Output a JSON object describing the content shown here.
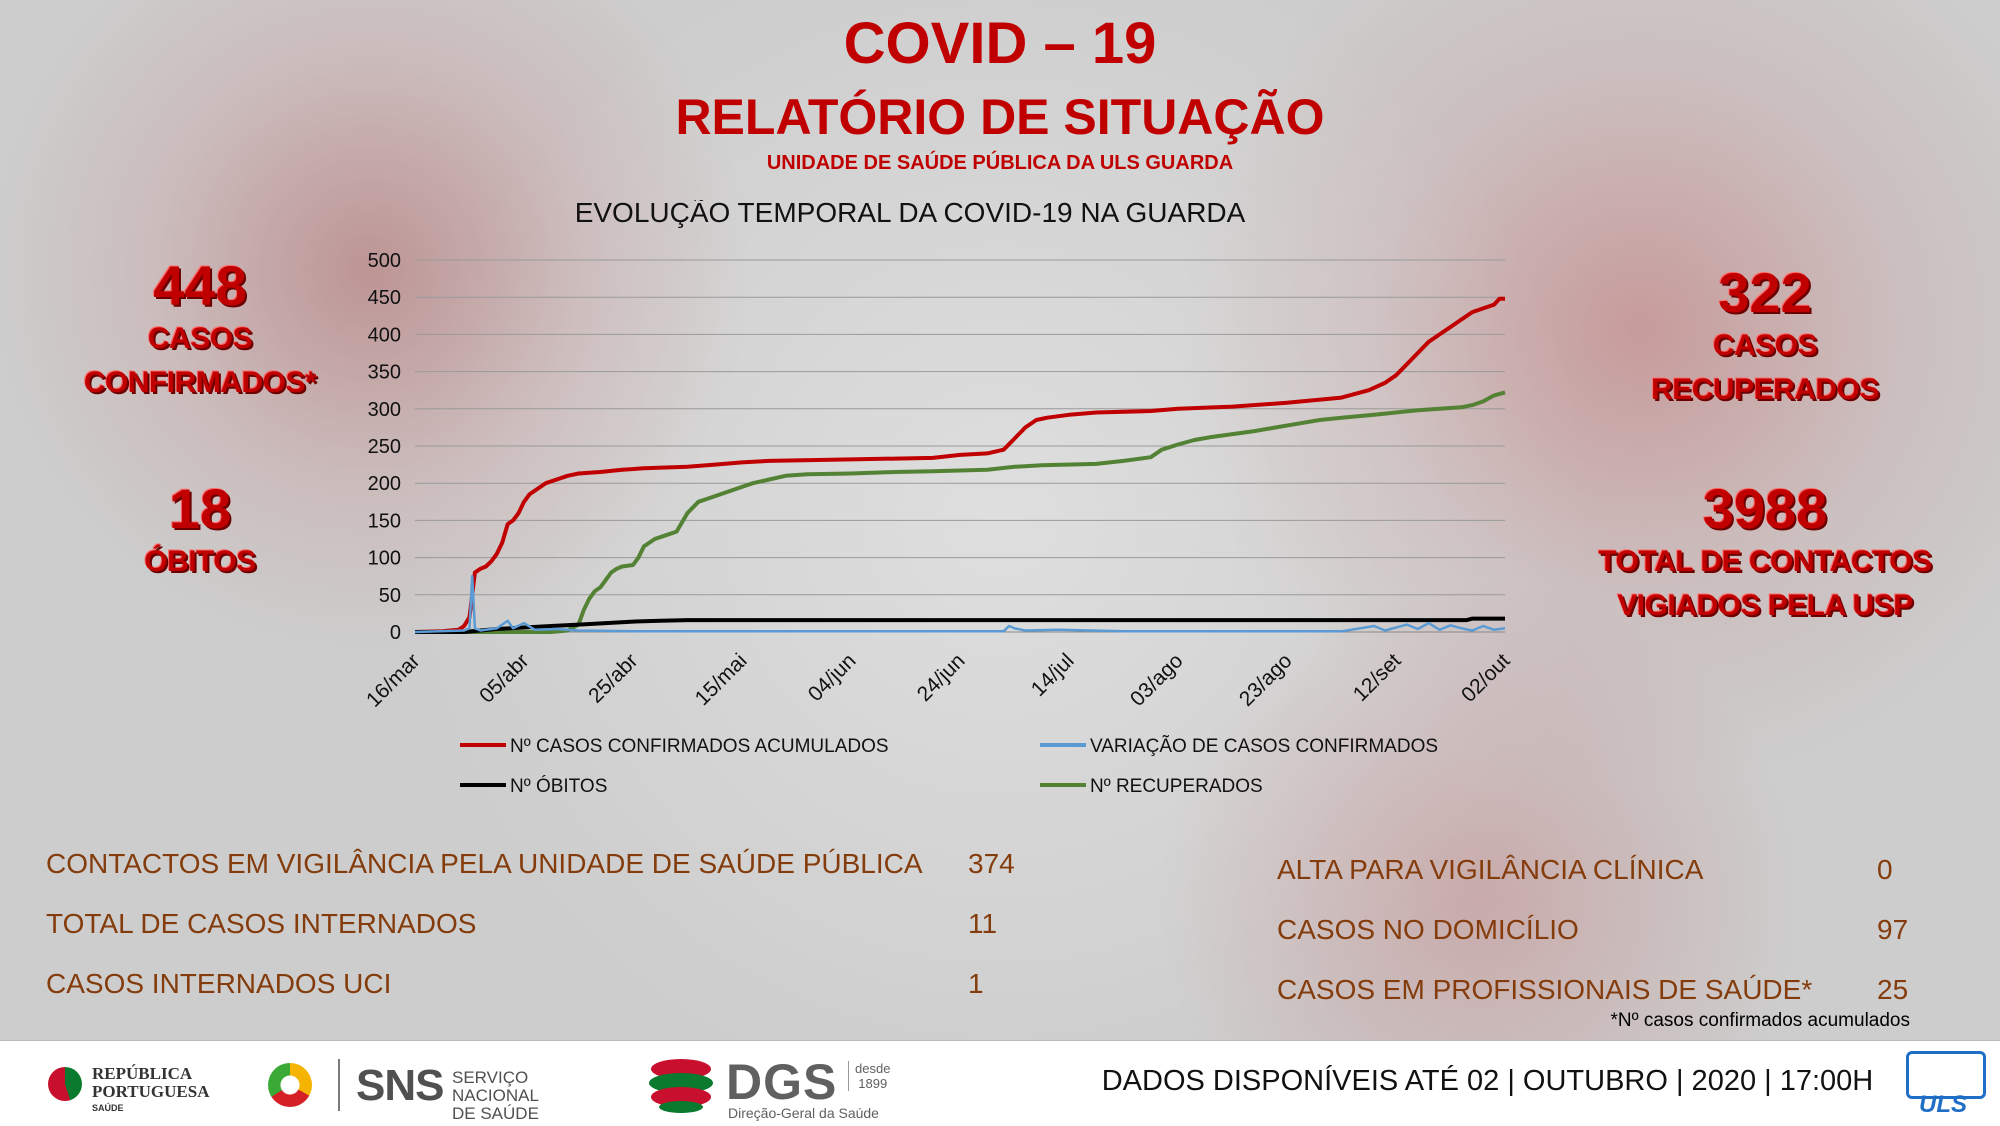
{
  "header": {
    "title": "COVID – 19",
    "subtitle": "RELATÓRIO DE SITUAÇÃO",
    "unit": "UNIDADE DE SAÚDE PÚBLICA DA ULS GUARDA"
  },
  "stats_left": {
    "confirmed_value": "448",
    "confirmed_label_1": "CASOS",
    "confirmed_label_2": "CONFIRMADOS*",
    "deaths_value": "18",
    "deaths_label": "ÓBITOS"
  },
  "stats_right": {
    "recovered_value": "322",
    "recovered_label_1": "CASOS",
    "recovered_label_2": "RECUPERADOS",
    "contacts_value": "3988",
    "contacts_label_1": "TOTAL DE CONTACTOS",
    "contacts_label_2": "VIGIADOS PELA USP"
  },
  "chart_data": {
    "type": "line",
    "title": "EVOLUÇÃO TEMPORAL DA COVID-19 NA GUARDA",
    "ylim": [
      0,
      500
    ],
    "y_ticks": [
      "0",
      "50",
      "100",
      "150",
      "200",
      "250",
      "300",
      "350",
      "400",
      "450",
      "500"
    ],
    "x_range_days": [
      0,
      200
    ],
    "x_ticks": [
      {
        "label": "16/mar",
        "day": 0
      },
      {
        "label": "05/abr",
        "day": 20
      },
      {
        "label": "25/abr",
        "day": 40
      },
      {
        "label": "15/mai",
        "day": 60
      },
      {
        "label": "04/jun",
        "day": 80
      },
      {
        "label": "24/jun",
        "day": 100
      },
      {
        "label": "14/jul",
        "day": 120
      },
      {
        "label": "03/ago",
        "day": 140
      },
      {
        "label": "23/ago",
        "day": 160
      },
      {
        "label": "12/set",
        "day": 180
      },
      {
        "label": "02/out",
        "day": 200
      }
    ],
    "grid": "horizontal",
    "legend_position": "bottom",
    "series": [
      {
        "name": "Nº CASOS CONFIRMADOS ACUMULADOS",
        "color": "#c00000",
        "points": [
          [
            0,
            0
          ],
          [
            5,
            1
          ],
          [
            8,
            3
          ],
          [
            9,
            8
          ],
          [
            10,
            20
          ],
          [
            11,
            80
          ],
          [
            12,
            85
          ],
          [
            13,
            88
          ],
          [
            14,
            95
          ],
          [
            15,
            105
          ],
          [
            16,
            120
          ],
          [
            17,
            145
          ],
          [
            18,
            150
          ],
          [
            19,
            160
          ],
          [
            20,
            175
          ],
          [
            21,
            185
          ],
          [
            22,
            190
          ],
          [
            23,
            195
          ],
          [
            24,
            200
          ],
          [
            26,
            205
          ],
          [
            28,
            210
          ],
          [
            30,
            213
          ],
          [
            34,
            215
          ],
          [
            38,
            218
          ],
          [
            42,
            220
          ],
          [
            50,
            222
          ],
          [
            55,
            225
          ],
          [
            60,
            228
          ],
          [
            65,
            230
          ],
          [
            80,
            232
          ],
          [
            95,
            234
          ],
          [
            100,
            238
          ],
          [
            105,
            240
          ],
          [
            108,
            245
          ],
          [
            110,
            260
          ],
          [
            112,
            275
          ],
          [
            114,
            285
          ],
          [
            116,
            288
          ],
          [
            120,
            292
          ],
          [
            125,
            295
          ],
          [
            135,
            297
          ],
          [
            140,
            300
          ],
          [
            150,
            303
          ],
          [
            160,
            308
          ],
          [
            170,
            315
          ],
          [
            175,
            325
          ],
          [
            178,
            335
          ],
          [
            180,
            345
          ],
          [
            182,
            360
          ],
          [
            184,
            375
          ],
          [
            186,
            390
          ],
          [
            188,
            400
          ],
          [
            190,
            410
          ],
          [
            192,
            420
          ],
          [
            194,
            430
          ],
          [
            196,
            435
          ],
          [
            198,
            440
          ],
          [
            199,
            448
          ],
          [
            200,
            448
          ]
        ]
      },
      {
        "name": "VARIAÇÃO DE CASOS CONFIRMADOS",
        "color": "#5b9bd5",
        "points": [
          [
            0,
            0
          ],
          [
            9,
            2
          ],
          [
            10,
            5
          ],
          [
            10.5,
            75
          ],
          [
            11,
            5
          ],
          [
            12,
            2
          ],
          [
            15,
            5
          ],
          [
            16,
            10
          ],
          [
            17,
            15
          ],
          [
            18,
            5
          ],
          [
            20,
            12
          ],
          [
            22,
            3
          ],
          [
            26,
            4
          ],
          [
            30,
            2
          ],
          [
            40,
            1
          ],
          [
            60,
            1
          ],
          [
            90,
            1
          ],
          [
            108,
            1
          ],
          [
            109,
            8
          ],
          [
            110,
            5
          ],
          [
            112,
            2
          ],
          [
            118,
            3
          ],
          [
            130,
            1
          ],
          [
            150,
            1
          ],
          [
            170,
            1
          ],
          [
            176,
            8
          ],
          [
            178,
            2
          ],
          [
            180,
            6
          ],
          [
            182,
            10
          ],
          [
            184,
            4
          ],
          [
            186,
            12
          ],
          [
            188,
            3
          ],
          [
            190,
            9
          ],
          [
            192,
            5
          ],
          [
            194,
            2
          ],
          [
            196,
            8
          ],
          [
            198,
            3
          ],
          [
            200,
            5
          ]
        ]
      },
      {
        "name": "Nº ÓBITOS",
        "color": "#000000",
        "points": [
          [
            0,
            0
          ],
          [
            9,
            0
          ],
          [
            12,
            2
          ],
          [
            15,
            4
          ],
          [
            20,
            6
          ],
          [
            25,
            8
          ],
          [
            30,
            10
          ],
          [
            35,
            12
          ],
          [
            40,
            14
          ],
          [
            45,
            15
          ],
          [
            50,
            16
          ],
          [
            150,
            16
          ],
          [
            193,
            16
          ],
          [
            194,
            18
          ],
          [
            200,
            18
          ]
        ]
      },
      {
        "name": "Nº RECUPERADOS",
        "color": "#548235",
        "points": [
          [
            0,
            0
          ],
          [
            25,
            0
          ],
          [
            28,
            2
          ],
          [
            30,
            10
          ],
          [
            31,
            30
          ],
          [
            32,
            45
          ],
          [
            33,
            55
          ],
          [
            34,
            60
          ],
          [
            35,
            70
          ],
          [
            36,
            80
          ],
          [
            37,
            85
          ],
          [
            38,
            88
          ],
          [
            40,
            90
          ],
          [
            41,
            100
          ],
          [
            42,
            115
          ],
          [
            44,
            125
          ],
          [
            46,
            130
          ],
          [
            48,
            135
          ],
          [
            50,
            160
          ],
          [
            52,
            175
          ],
          [
            54,
            180
          ],
          [
            56,
            185
          ],
          [
            58,
            190
          ],
          [
            60,
            195
          ],
          [
            62,
            200
          ],
          [
            65,
            205
          ],
          [
            68,
            210
          ],
          [
            72,
            212
          ],
          [
            80,
            213
          ],
          [
            88,
            215
          ],
          [
            95,
            216
          ],
          [
            105,
            218
          ],
          [
            110,
            222
          ],
          [
            115,
            224
          ],
          [
            125,
            226
          ],
          [
            130,
            230
          ],
          [
            135,
            235
          ],
          [
            137,
            245
          ],
          [
            140,
            252
          ],
          [
            143,
            258
          ],
          [
            146,
            262
          ],
          [
            150,
            266
          ],
          [
            154,
            270
          ],
          [
            158,
            275
          ],
          [
            162,
            280
          ],
          [
            166,
            285
          ],
          [
            170,
            288
          ],
          [
            176,
            292
          ],
          [
            180,
            295
          ],
          [
            184,
            298
          ],
          [
            188,
            300
          ],
          [
            192,
            302
          ],
          [
            194,
            305
          ],
          [
            196,
            310
          ],
          [
            198,
            318
          ],
          [
            200,
            322
          ]
        ]
      }
    ]
  },
  "info_left": [
    {
      "label": "CONTACTOS EM VIGILÂNCIA PELA UNIDADE DE SAÚDE PÚBLICA",
      "value": "374"
    },
    {
      "label": "TOTAL DE CASOS INTERNADOS",
      "value": "11"
    },
    {
      "label": "CASOS INTERNADOS UCI",
      "value": "1"
    }
  ],
  "info_right": [
    {
      "label": "ALTA PARA VIGILÂNCIA CLÍNICA",
      "value": "0"
    },
    {
      "label": "CASOS NO DOMICÍLIO",
      "value": "97"
    },
    {
      "label": "CASOS EM PROFISSIONAIS DE SAÚDE*",
      "value": "25"
    }
  ],
  "footnote": "*Nº casos confirmados acumulados",
  "footer": {
    "rep_line1": "REPÚBLICA",
    "rep_line2": "PORTUGUESA",
    "rep_saude": "SAÚDE",
    "sns_abbr": "SNS",
    "sns_line1": "SERVIÇO NACIONAL",
    "sns_line2": "DE SAÚDE",
    "dgs_abbr": "DGS",
    "dgs_since_1": "desde",
    "dgs_since_2": "1899",
    "dgs_full": "Direção-Geral da Saúde",
    "date_text": "DADOS DISPONÍVEIS ATÉ 02 | OUTUBRO | 2020 | 17:00H",
    "uls_text": "ULS",
    "colors": {
      "accent_red": "#c00000",
      "text_brown": "#843c0c"
    }
  }
}
